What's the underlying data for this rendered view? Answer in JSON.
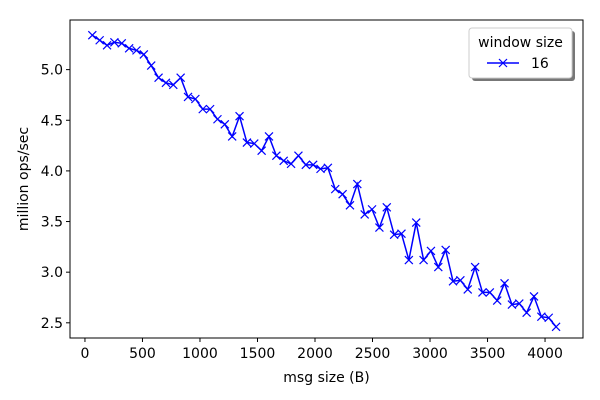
{
  "chart_data": {
    "type": "line",
    "xlabel": "msg size (B)",
    "ylabel": "million ops/sec",
    "xlim": [
      -130,
      4330
    ],
    "ylim": [
      2.35,
      5.49
    ],
    "xticks": [
      0,
      500,
      1000,
      1500,
      2000,
      2500,
      3000,
      3500,
      4000
    ],
    "yticks": [
      2.5,
      3.0,
      3.5,
      4.0,
      4.5,
      5.0
    ],
    "ytick_labels": [
      "2.5",
      "3.0",
      "3.5",
      "4.0",
      "4.5",
      "5.0"
    ],
    "grid": false,
    "legend": {
      "title": "window size",
      "placement": "top-right"
    },
    "series": [
      {
        "name": "16",
        "color": "#0000ff",
        "marker": "x",
        "x": [
          64,
          128,
          192,
          256,
          320,
          384,
          448,
          512,
          576,
          640,
          704,
          768,
          832,
          896,
          960,
          1024,
          1088,
          1152,
          1216,
          1280,
          1344,
          1408,
          1472,
          1536,
          1600,
          1664,
          1728,
          1792,
          1856,
          1920,
          1984,
          2048,
          2112,
          2176,
          2240,
          2304,
          2368,
          2432,
          2496,
          2560,
          2624,
          2688,
          2752,
          2816,
          2880,
          2944,
          3008,
          3072,
          3136,
          3200,
          3264,
          3328,
          3392,
          3456,
          3520,
          3584,
          3648,
          3712,
          3776,
          3840,
          3904,
          3968,
          4032,
          4096
        ],
        "values": [
          5.34,
          5.29,
          5.24,
          5.27,
          5.26,
          5.21,
          5.19,
          5.15,
          5.04,
          4.92,
          4.87,
          4.85,
          4.92,
          4.73,
          4.71,
          4.61,
          4.61,
          4.51,
          4.46,
          4.34,
          4.54,
          4.28,
          4.27,
          4.2,
          4.34,
          4.15,
          4.1,
          4.07,
          4.15,
          4.06,
          4.06,
          4.02,
          4.03,
          3.82,
          3.77,
          3.66,
          3.87,
          3.57,
          3.62,
          3.44,
          3.64,
          3.37,
          3.38,
          3.12,
          3.49,
          3.12,
          3.21,
          3.05,
          3.22,
          2.91,
          2.92,
          2.83,
          3.05,
          2.8,
          2.8,
          2.72,
          2.89,
          2.68,
          2.69,
          2.6,
          2.76,
          2.56,
          2.55,
          2.46
        ]
      }
    ]
  }
}
